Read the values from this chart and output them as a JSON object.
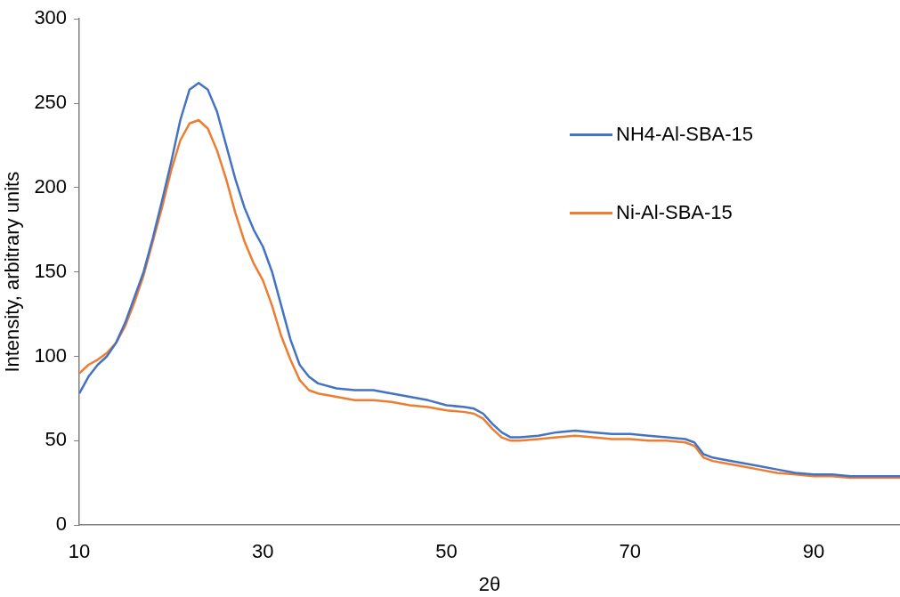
{
  "chart_data": {
    "type": "line",
    "xlabel": "2θ",
    "ylabel": "Intensity, arbitrary units",
    "xlim": [
      10,
      99.4
    ],
    "xticks": [
      10,
      30,
      50,
      70,
      90
    ],
    "ylim": [
      0,
      300
    ],
    "yticks": [
      0,
      50,
      100,
      150,
      200,
      250,
      300
    ],
    "grid": false,
    "legend": "top right",
    "marker": "none",
    "line_style": "solid",
    "x": [
      10,
      11,
      12,
      13,
      14,
      15,
      16,
      17,
      18,
      19,
      20,
      21,
      22,
      23,
      24,
      25,
      26,
      27,
      28,
      29,
      30,
      31,
      32,
      33,
      34,
      35,
      36,
      38,
      40,
      42,
      44,
      46,
      48,
      50,
      52,
      53,
      54,
      55,
      56,
      57,
      58,
      60,
      62,
      64,
      66,
      68,
      70,
      72,
      74,
      76,
      77,
      78,
      79,
      80,
      82,
      84,
      86,
      88,
      90,
      92,
      94,
      96,
      98,
      99.4
    ],
    "series": [
      {
        "name": "NH4-Al-SBA-15",
        "color": "#4472c4",
        "values": [
          78,
          88,
          95,
          100,
          108,
          120,
          135,
          150,
          170,
          192,
          215,
          240,
          258,
          262,
          258,
          245,
          225,
          205,
          188,
          175,
          165,
          150,
          130,
          110,
          95,
          88,
          84,
          81,
          80,
          80,
          78,
          76,
          74,
          71,
          70,
          69,
          66,
          60,
          55,
          52,
          52,
          53,
          55,
          56,
          55,
          54,
          54,
          53,
          52,
          51,
          49,
          42,
          40,
          39,
          37,
          35,
          33,
          31,
          30,
          30,
          29,
          29,
          29,
          29
        ]
      },
      {
        "name": "Ni-Al-SBA-15",
        "color": "#ed7d31",
        "values": [
          90,
          95,
          98,
          102,
          108,
          118,
          132,
          148,
          168,
          188,
          210,
          228,
          238,
          240,
          235,
          222,
          205,
          185,
          168,
          155,
          145,
          130,
          112,
          98,
          86,
          80,
          78,
          76,
          74,
          74,
          73,
          71,
          70,
          68,
          67,
          66,
          63,
          57,
          52,
          50,
          50,
          51,
          52,
          53,
          52,
          51,
          51,
          50,
          50,
          49,
          47,
          40,
          38,
          37,
          35,
          33,
          31,
          30,
          29,
          29,
          28,
          28,
          28,
          28
        ]
      }
    ]
  }
}
